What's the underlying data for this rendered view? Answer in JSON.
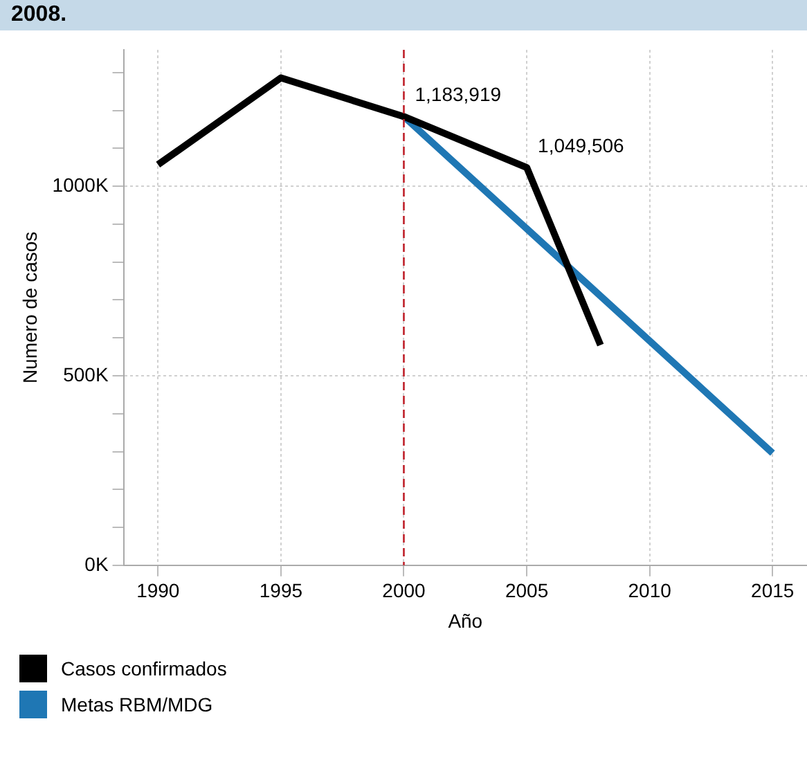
{
  "chart_data": {
    "type": "line",
    "title": "2008.",
    "xlabel": "Año",
    "ylabel": "Numero de casos",
    "xlim": [
      1988.6,
      2016.4
    ],
    "xticks": [
      1990,
      1995,
      2000,
      2005,
      2010,
      2015
    ],
    "ylim": [
      0,
      1360000
    ],
    "yticks": [
      {
        "value": 0,
        "label": "0K"
      },
      {
        "value": 100000,
        "label": null
      },
      {
        "value": 200000,
        "label": null
      },
      {
        "value": 300000,
        "label": null
      },
      {
        "value": 400000,
        "label": null
      },
      {
        "value": 500000,
        "label": "500K"
      },
      {
        "value": 600000,
        "label": null
      },
      {
        "value": 700000,
        "label": null
      },
      {
        "value": 800000,
        "label": null
      },
      {
        "value": 900000,
        "label": null
      },
      {
        "value": 1000000,
        "label": "1000K"
      },
      {
        "value": 1100000,
        "label": null
      },
      {
        "value": 1200000,
        "label": null
      },
      {
        "value": 1300000,
        "label": null
      }
    ],
    "series": [
      {
        "name": "Casos confirmados",
        "color": "#000000",
        "x": [
          1990,
          1995,
          2000,
          2005,
          2008
        ],
        "values": [
          1057000,
          1286000,
          1183919,
          1049506,
          581000
        ],
        "value_labels": [
          null,
          null,
          "1,183,919",
          "1,049,506",
          null
        ]
      },
      {
        "name": "Metas RBM/MDG",
        "color": "#1f77b4",
        "x": [
          2000,
          2015
        ],
        "values": [
          1183919,
          296000
        ]
      }
    ],
    "ref_lines": [
      {
        "axis": "x",
        "value": 2000,
        "color": "#c0202a",
        "line_style": "dashed"
      }
    ],
    "grid": true,
    "legend": "bottom left",
    "marker": "none",
    "line_style": "solid"
  }
}
